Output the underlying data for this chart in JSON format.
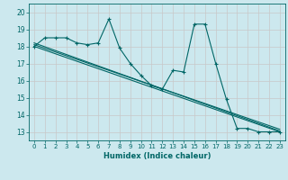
{
  "xlabel": "Humidex (Indice chaleur)",
  "bg_color": "#cce8ee",
  "grid_color": "#c8c8c8",
  "line_color": "#006666",
  "xlim": [
    -0.5,
    23.5
  ],
  "ylim": [
    12.5,
    20.5
  ],
  "yticks": [
    13,
    14,
    15,
    16,
    17,
    18,
    19,
    20
  ],
  "xticks": [
    0,
    1,
    2,
    3,
    4,
    5,
    6,
    7,
    8,
    9,
    10,
    11,
    12,
    13,
    14,
    15,
    16,
    17,
    18,
    19,
    20,
    21,
    22,
    23
  ],
  "data_x": [
    0,
    1,
    2,
    3,
    4,
    5,
    6,
    7,
    8,
    9,
    10,
    11,
    12,
    13,
    14,
    15,
    16,
    17,
    18,
    19,
    20,
    21,
    22,
    23
  ],
  "data_y": [
    18.0,
    18.5,
    18.5,
    18.5,
    18.2,
    18.1,
    18.2,
    19.6,
    17.9,
    17.0,
    16.3,
    15.7,
    15.5,
    16.6,
    16.5,
    19.3,
    19.3,
    17.0,
    14.9,
    13.2,
    13.2,
    13.0,
    13.0,
    13.0
  ],
  "trend1_y_start": 18.0,
  "trend1_y_end": 13.0,
  "trend2_y_start": 18.1,
  "trend2_y_end": 13.15,
  "trend3_y_start": 18.2,
  "trend3_y_end": 13.05
}
